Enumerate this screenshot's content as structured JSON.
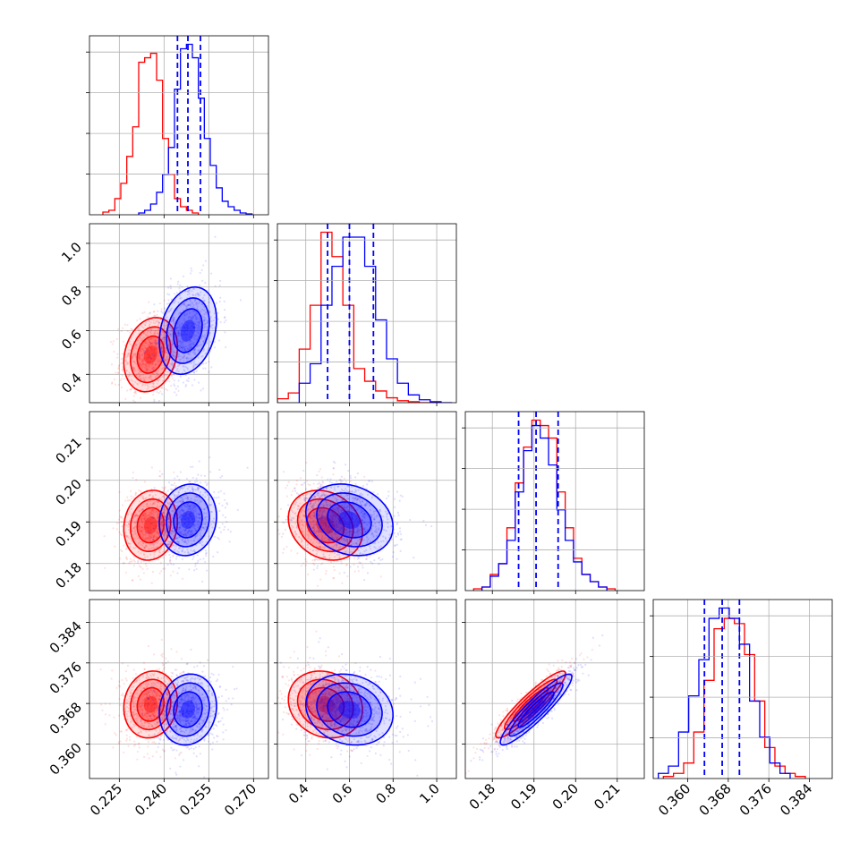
{
  "chart_data": {
    "type": "corner",
    "parameters": [
      {
        "index": 0,
        "range": [
          0.215,
          0.275
        ],
        "ticks": [
          "0.225",
          "0.240",
          "0.255",
          "0.270"
        ],
        "tick_values": [
          0.225,
          0.24,
          0.255,
          0.27
        ]
      },
      {
        "index": 1,
        "range": [
          0.27,
          1.09
        ],
        "ticks": [
          "0.4",
          "0.6",
          "0.8",
          "1.0"
        ],
        "tick_values": [
          0.4,
          0.6,
          0.8,
          1.0
        ]
      },
      {
        "index": 2,
        "range": [
          0.1735,
          0.2165
        ],
        "ticks": [
          "0.18",
          "0.19",
          "0.20",
          "0.21"
        ],
        "tick_values": [
          0.18,
          0.19,
          0.2,
          0.21
        ]
      },
      {
        "index": 3,
        "range": [
          0.3532,
          0.3885
        ],
        "ticks": [
          "0.360",
          "0.368",
          "0.376",
          "0.384"
        ],
        "tick_values": [
          0.36,
          0.368,
          0.376,
          0.384
        ]
      }
    ],
    "grid": true,
    "series": [
      {
        "color": "#ff0000",
        "means": [
          0.2355,
          0.49,
          0.1892,
          0.3678
        ],
        "stds": [
          0.0045,
          0.085,
          0.0042,
          0.0033
        ],
        "correlations": {
          "1-0": 0.2,
          "2-0": 0.1,
          "2-1": -0.2,
          "3-0": 0.1,
          "3-1": -0.15,
          "3-2": 0.92
        },
        "histograms": [
          {
            "edges": [
              0.2195,
              0.2215,
              0.2235,
              0.2255,
              0.2275,
              0.2295,
              0.2315,
              0.2335,
              0.2355,
              0.2375,
              0.2395,
              0.2415,
              0.2435,
              0.2455,
              0.2475,
              0.2495,
              0.2515
            ],
            "counts": [
              3,
              5,
              18,
              35,
              65,
              98,
              170,
              175,
              180,
              150,
              85,
              45,
              18,
              9,
              5,
              2
            ]
          },
          {
            "edges": [
              0.27,
              0.32,
              0.37,
              0.42,
              0.47,
              0.52,
              0.57,
              0.62,
              0.67,
              0.72,
              0.77,
              0.82,
              0.87,
              0.92,
              0.97,
              1.02
            ],
            "counts": [
              4,
              10,
              55,
              100,
              175,
              150,
              100,
              35,
              22,
              12,
              5,
              2,
              1,
              0,
              0
            ]
          },
          {
            "edges": [
              0.1755,
              0.1775,
              0.1795,
              0.1815,
              0.1835,
              0.1855,
              0.1875,
              0.1895,
              0.1915,
              0.1935,
              0.1955,
              0.1975,
              0.1995,
              0.2015,
              0.2035,
              0.2055,
              0.2075,
              0.2095
            ],
            "counts": [
              1,
              2,
              9,
              15,
              35,
              60,
              80,
              95,
              92,
              85,
              55,
              35,
              18,
              9,
              5,
              2,
              1
            ]
          },
          {
            "edges": [
              0.3552,
              0.3572,
              0.3592,
              0.3612,
              0.3632,
              0.3652,
              0.3672,
              0.3692,
              0.3712,
              0.3732,
              0.3752,
              0.3772,
              0.3792,
              0.3812,
              0.3832
            ],
            "counts": [
              2,
              5,
              15,
              45,
              95,
              145,
              155,
              150,
              120,
              75,
              30,
              12,
              5,
              2
            ]
          }
        ]
      },
      {
        "color": "#0000ff",
        "means": [
          0.248,
          0.6,
          0.1905,
          0.3668
        ],
        "stds": [
          0.0048,
          0.1,
          0.0043,
          0.0035
        ],
        "correlations": {
          "1-0": 0.25,
          "2-0": 0.1,
          "2-1": -0.2,
          "3-0": 0.1,
          "3-1": -0.15,
          "3-2": 0.92
        },
        "histograms": [
          {
            "edges": [
              0.2315,
              0.2335,
              0.2355,
              0.2375,
              0.2395,
              0.2415,
              0.2435,
              0.2455,
              0.2475,
              0.2495,
              0.2515,
              0.2535,
              0.2555,
              0.2575,
              0.2595,
              0.2615,
              0.2635,
              0.2655,
              0.2675,
              0.2695
            ],
            "counts": [
              2,
              5,
              12,
              25,
              45,
              75,
              140,
              185,
              190,
              175,
              130,
              85,
              55,
              30,
              15,
              9,
              5,
              2,
              1
            ]
          },
          {
            "edges": [
              0.37,
              0.42,
              0.47,
              0.52,
              0.57,
              0.62,
              0.67,
              0.72,
              0.77,
              0.82,
              0.87,
              0.92,
              0.97,
              1.02,
              1.07
            ],
            "counts": [
              20,
              40,
              100,
              140,
              170,
              170,
              140,
              85,
              45,
              20,
              8,
              3,
              1,
              0
            ]
          },
          {
            "edges": [
              0.1775,
              0.1795,
              0.1815,
              0.1835,
              0.1855,
              0.1875,
              0.1895,
              0.1915,
              0.1935,
              0.1955,
              0.1975,
              0.1995,
              0.2015,
              0.2035,
              0.2055,
              0.2075
            ],
            "counts": [
              2,
              8,
              15,
              28,
              55,
              78,
              92,
              85,
              70,
              45,
              28,
              16,
              9,
              5,
              2
            ]
          },
          {
            "edges": [
              0.3542,
              0.3562,
              0.3582,
              0.3602,
              0.3622,
              0.3642,
              0.3662,
              0.3682,
              0.3702,
              0.3722,
              0.3742,
              0.3762,
              0.3782,
              0.3802
            ],
            "counts": [
              5,
              12,
              45,
              80,
              115,
              155,
              165,
              155,
              130,
              75,
              40,
              15,
              5
            ]
          }
        ]
      }
    ],
    "quantiles": {
      "color": "#0000ff",
      "style": "dashed",
      "values": [
        [
          0.2445,
          0.248,
          0.2522
        ],
        [
          0.5,
          0.6,
          0.71
        ],
        [
          0.1863,
          0.1905,
          0.1958
        ],
        [
          0.3633,
          0.3668,
          0.3702
        ]
      ]
    }
  }
}
